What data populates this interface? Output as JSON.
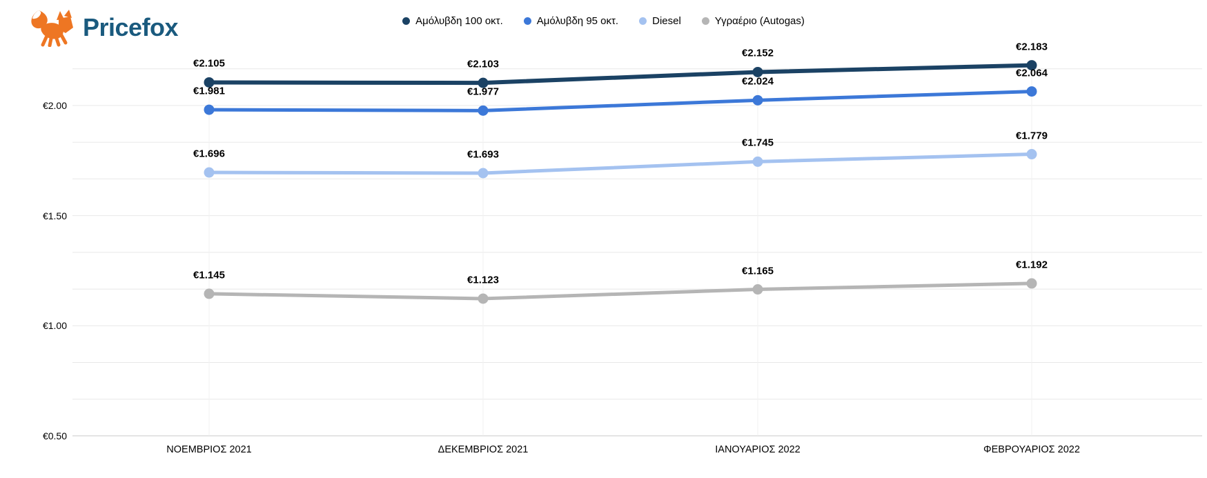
{
  "brand": {
    "logo_text": "Pricefox",
    "logo_color": "#1a5a7e",
    "fox_color": "#ee7623"
  },
  "chart_data": {
    "type": "line",
    "title": "",
    "categories": [
      "ΝΟΕΜΒΡΙΟΣ 2021",
      "ΔΕΚΕΜΒΡΙΟΣ 2021",
      "ΙΑΝΟΥΑΡΙΟΣ 2022",
      "ΦΕΒΡΟΥΑΡΙΟΣ 2022"
    ],
    "series": [
      {
        "name": "Αμόλυβδη 100 οκτ.",
        "color": "#1b4264",
        "values": [
          2.105,
          2.103,
          2.152,
          2.183
        ],
        "labels": [
          "€2.105",
          "€2.103",
          "€2.152",
          "€2.183"
        ]
      },
      {
        "name": "Αμόλυβδη 95 οκτ.",
        "color": "#3c78d8",
        "values": [
          1.981,
          1.977,
          2.024,
          2.064
        ],
        "labels": [
          "€1.981",
          "€1.977",
          "€2.024",
          "€2.064"
        ]
      },
      {
        "name": "Diesel",
        "color": "#a4c2f0",
        "values": [
          1.696,
          1.693,
          1.745,
          1.779
        ],
        "labels": [
          "€1.696",
          "€1.693",
          "€1.745",
          "€1.779"
        ]
      },
      {
        "name": "Υγραέριο (Autogas)",
        "color": "#b5b5b5",
        "values": [
          1.145,
          1.123,
          1.165,
          1.192
        ],
        "labels": [
          "€1.145",
          "€1.123",
          "€1.165",
          "€1.192"
        ]
      }
    ],
    "y_axis": {
      "ticks": [
        {
          "label": "€2.00",
          "value": 2.0
        },
        {
          "label": "€1.50",
          "value": 1.5
        },
        {
          "label": "€1.00",
          "value": 1.0
        },
        {
          "label": "€0.50",
          "value": 0.5
        }
      ],
      "min": 0.5,
      "max": 2.1667,
      "minor_step": 0.1667
    },
    "grid": true,
    "legend_position": "top",
    "colors": {
      "gridline": "#e8e8e8",
      "gridline_bottom": "#c9c9c9",
      "column_guide": "#f2f2f2"
    }
  }
}
